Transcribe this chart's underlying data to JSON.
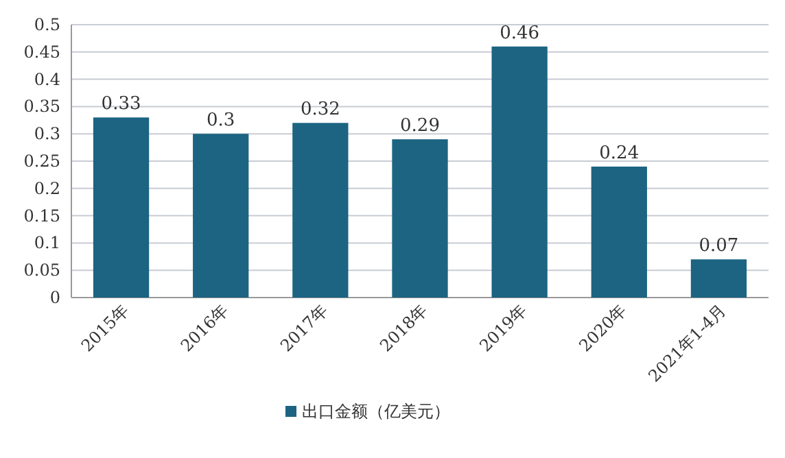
{
  "chart_data": {
    "type": "bar",
    "categories": [
      "2015年",
      "2016年",
      "2017年",
      "2018年",
      "2019年",
      "2020年",
      "2021年1-4月"
    ],
    "series": [
      {
        "name": "出口金额（亿美元）",
        "color": "#1c6482",
        "values": [
          0.33,
          0.3,
          0.32,
          0.29,
          0.46,
          0.24,
          0.07
        ]
      }
    ],
    "ylim": [
      0,
      0.5
    ],
    "yticks": [
      0,
      0.05,
      0.1,
      0.15,
      0.2,
      0.25,
      0.3,
      0.35,
      0.4,
      0.45,
      0.5
    ],
    "grid": "y",
    "legend": "bottom",
    "data_labels": true
  }
}
